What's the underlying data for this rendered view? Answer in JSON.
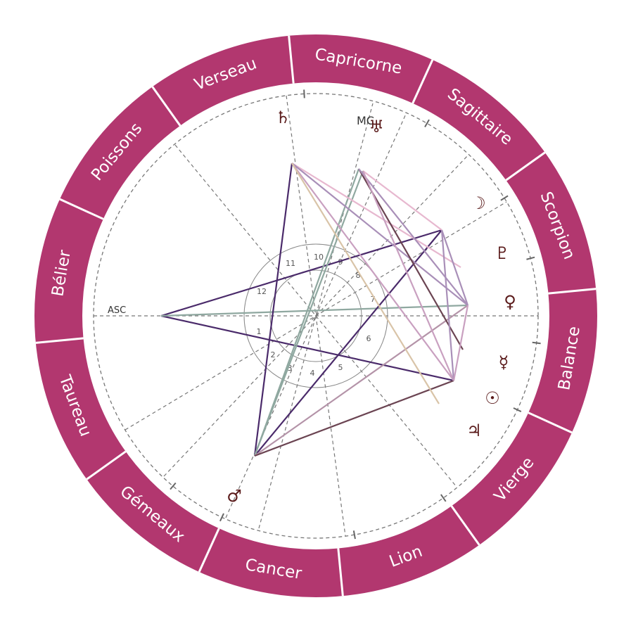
{
  "colors": {
    "ring": "#b2376f",
    "divider": "#ffffff",
    "planet": "#5a1a1a",
    "house_line": "#777777"
  },
  "signs": [
    {
      "name": "Verseau"
    },
    {
      "name": "Capricorne"
    },
    {
      "name": "Sagittaire"
    },
    {
      "name": "Scorpion"
    },
    {
      "name": "Balance"
    },
    {
      "name": "Vierge"
    },
    {
      "name": "Lion"
    },
    {
      "name": "Cancer"
    },
    {
      "name": "Gémeaux"
    },
    {
      "name": "Taureau"
    },
    {
      "name": "Bélier"
    },
    {
      "name": "Poissons"
    }
  ],
  "houses": [
    "1",
    "2",
    "3",
    "4",
    "5",
    "6",
    "7",
    "8",
    "9",
    "10",
    "11",
    "12"
  ],
  "axes": {
    "asc": "ASC",
    "mc": "MC"
  },
  "planets": [
    {
      "name": "saturn",
      "glyph": "♄"
    },
    {
      "name": "uranus",
      "glyph": "♅"
    },
    {
      "name": "moon",
      "glyph": "☽"
    },
    {
      "name": "pluto",
      "glyph": "♇"
    },
    {
      "name": "venus",
      "glyph": "♀"
    },
    {
      "name": "mercury",
      "glyph": "☿"
    },
    {
      "name": "sun",
      "glyph": "☉"
    },
    {
      "name": "jupiter",
      "glyph": "♃"
    },
    {
      "name": "mars",
      "glyph": "♂"
    }
  ],
  "aspect_colors": [
    "#4a2a6a",
    "#8fa8a0",
    "#c9a0c0",
    "#e7b8cf",
    "#6b4452",
    "#a98fb8",
    "#d9c4a8"
  ]
}
